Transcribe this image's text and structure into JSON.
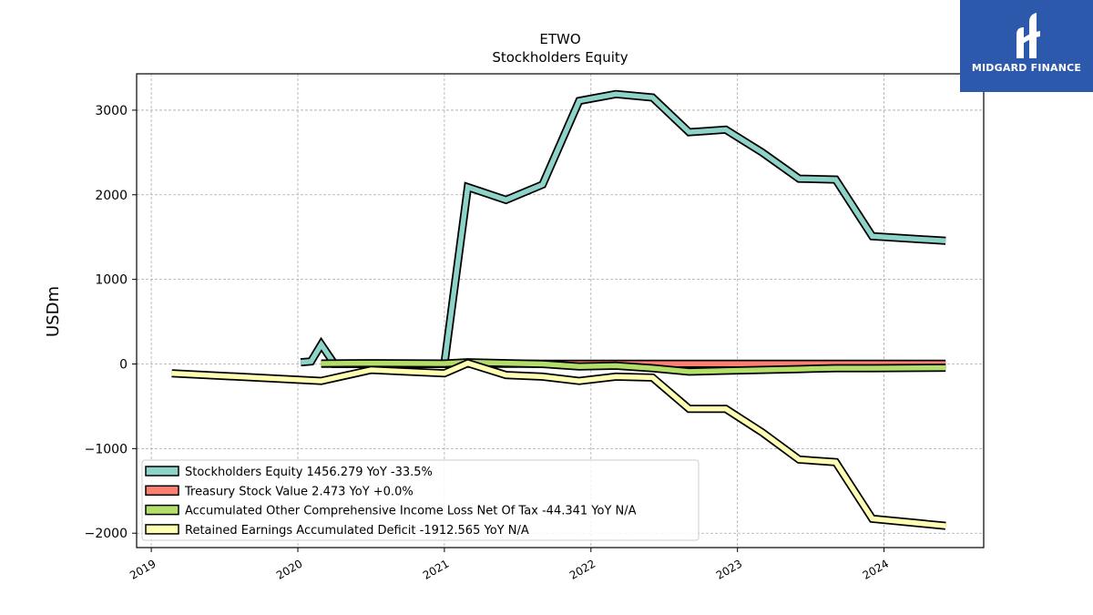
{
  "chart_data": {
    "type": "line",
    "title": "ETWO",
    "subtitle": "Stockholders  Equity",
    "ylabel": "USDm",
    "xlabel": "",
    "ylim": [
      -2170,
      3430
    ],
    "xlim": [
      2018.9,
      2024.68
    ],
    "yticks": [
      -2000,
      -1000,
      0,
      1000,
      2000,
      3000
    ],
    "ytick_labels": [
      "−2000",
      "−1000",
      "0",
      "1000",
      "2000",
      "3000"
    ],
    "xticks": [
      2019,
      2020,
      2021,
      2022,
      2023,
      2024
    ],
    "xtick_labels": [
      "2019",
      "2020",
      "2021",
      "2022",
      "2023",
      "2024"
    ],
    "grid": true,
    "legend_position": "lower-left",
    "series": [
      {
        "name": "Stockholders Equity",
        "legend_label": "Stockholders Equity  1456.279 YoY -33.5%",
        "color": "#8dd3c7",
        "x": [
          2020.02,
          2020.09,
          2020.16,
          2020.25,
          2021.0,
          2021.16,
          2021.42,
          2021.67,
          2021.92,
          2022.17,
          2022.42,
          2022.67,
          2022.92,
          2023.17,
          2023.42,
          2023.67,
          2023.92,
          2024.42
        ],
        "y": [
          20,
          30,
          230,
          0,
          0,
          2090,
          1940,
          2120,
          3110,
          3190,
          3150,
          2740,
          2770,
          2500,
          2190,
          2180,
          1510,
          1456.279
        ]
      },
      {
        "name": "Treasury Stock Value",
        "legend_label": "Treasury Stock Value  2.473 YoY +0.0%",
        "color": "#fb8072",
        "x": [
          2020.16,
          2020.75,
          2021.0,
          2021.42,
          2021.92,
          2022.42,
          2022.67,
          2023.0,
          2023.5,
          2024.0,
          2024.42
        ],
        "y": [
          2.473,
          2.473,
          2.473,
          2.473,
          2.473,
          2.473,
          2.473,
          2.473,
          2.473,
          2.473,
          2.473
        ]
      },
      {
        "name": "Accumulated Other Comprehensive Income Loss Net Of Tax",
        "legend_label": "Accumulated Other Comprehensive Income Loss Net Of Tax  -44.341 YoY N/A",
        "color": "#b3de69",
        "x": [
          2020.16,
          2020.5,
          2021.0,
          2021.16,
          2021.42,
          2021.67,
          2021.92,
          2022.17,
          2022.42,
          2022.67,
          2022.92,
          2023.42,
          2023.67,
          2023.92,
          2024.42
        ],
        "y": [
          5,
          10,
          5,
          20,
          10,
          0,
          -30,
          -20,
          -50,
          -90,
          -80,
          -60,
          -50,
          -50,
          -44.341
        ]
      },
      {
        "name": "Retained Earnings Accumulated Deficit",
        "legend_label": "Retained Earnings Accumulated Deficit  -1912.565 YoY N/A",
        "color": "#ffffb3",
        "x": [
          2019.14,
          2020.16,
          2020.5,
          2020.75,
          2021.0,
          2021.16,
          2021.42,
          2021.67,
          2021.92,
          2022.17,
          2022.42,
          2022.67,
          2022.92,
          2023.17,
          2023.42,
          2023.67,
          2023.92,
          2024.42
        ],
        "y": [
          -110,
          -200,
          -70,
          -90,
          -110,
          10,
          -130,
          -150,
          -200,
          -150,
          -160,
          -530,
          -530,
          -810,
          -1130,
          -1160,
          -1830,
          -1912.565
        ]
      }
    ]
  },
  "logo": {
    "text": "MIDGARD FINANCE",
    "bg_color": "#2d59ad"
  }
}
